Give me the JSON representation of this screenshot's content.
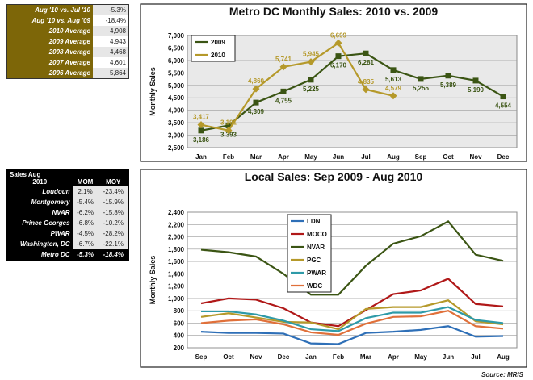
{
  "tables": [
    {
      "rows": [
        [
          "Aug '10 vs. Jul '10",
          "-5.3%"
        ],
        [
          "Aug '10 vs. Aug '09",
          "-18.4%"
        ],
        [
          "2010 Average",
          "4,908"
        ],
        [
          "2009 Average",
          "4,943"
        ],
        [
          "2008 Average",
          "4,468"
        ],
        [
          "2007 Average",
          "4,601"
        ],
        [
          "2006 Average",
          "5,864"
        ]
      ]
    },
    {
      "header": {
        "title_line1": "Sales Aug",
        "title_line2": "2010",
        "columns": [
          "MOM",
          "MOY"
        ]
      },
      "rows": [
        [
          "Loudoun",
          "2.1%",
          "-23.4%"
        ],
        [
          "Montgomery",
          "-5.4%",
          "-15.9%"
        ],
        [
          "NVAR",
          "-6.2%",
          "-15.8%"
        ],
        [
          "Prince Georges",
          "-6.8%",
          "-10.2%"
        ],
        [
          "PWAR",
          "-4.5%",
          "-28.2%"
        ],
        [
          "Washington, DC",
          "-6.7%",
          "-22.1%"
        ],
        [
          "Metro DC",
          "-5.3%",
          "-18.4%"
        ]
      ]
    }
  ],
  "chart_data": [
    {
      "type": "line",
      "title": "Metro DC Monthly Sales: 2010 vs. 2009",
      "y_label": "Monthly Sales",
      "categories": [
        "Jan",
        "Feb",
        "Mar",
        "Apr",
        "May",
        "Jun",
        "Jul",
        "Aug",
        "Sep",
        "Oct",
        "Nov",
        "Dec"
      ],
      "ylim": [
        2500,
        7000
      ],
      "yticks": [
        {
          "value": 2500,
          "label": "2,500"
        },
        {
          "value": 3000,
          "label": "3,000"
        },
        {
          "value": 3500,
          "label": "3,500"
        },
        {
          "value": 4000,
          "label": "4,000"
        },
        {
          "value": 4500,
          "label": "4,500"
        },
        {
          "value": 5000,
          "label": "5,000"
        },
        {
          "value": 5500,
          "label": "5,500"
        },
        {
          "value": 6000,
          "label": "6,000"
        },
        {
          "value": 6500,
          "label": "6,500"
        },
        {
          "value": 7000,
          "label": "7,000"
        }
      ],
      "grid": true,
      "legend": "upper left",
      "series": [
        {
          "name": "2009",
          "color": "#3b5514",
          "marker": "square",
          "values": [
            3186,
            3393,
            4309,
            4755,
            5225,
            6170,
            6281,
            5613,
            5255,
            5389,
            5190,
            4554
          ],
          "value_labels": [
            "3,186",
            "3,393",
            "4,309",
            "4,755",
            "5,225",
            "6,170",
            "6,281",
            "5,613",
            "5,255",
            "5,389",
            "5,190",
            "4,554"
          ]
        },
        {
          "name": "2010",
          "color": "#b5992a",
          "marker": "diamond",
          "values": [
            3417,
            3191,
            4860,
            5741,
            5945,
            6699,
            4835,
            4579,
            null,
            null,
            null,
            null
          ],
          "value_labels": [
            "3,417",
            "3,191",
            "4,860",
            "5,741",
            "5,945",
            "6,699",
            "4,835",
            "4,579",
            null,
            null,
            null,
            null
          ]
        }
      ]
    },
    {
      "type": "line",
      "title": "Local Sales: Sep 2009 - Aug 2010",
      "y_label": "Monthly Sales",
      "categories": [
        "Sep",
        "Oct",
        "Nov",
        "Dec",
        "Jan",
        "Feb",
        "Mar",
        "Apr",
        "May",
        "Jun",
        "Jul",
        "Aug"
      ],
      "ylim": [
        200,
        2400
      ],
      "yticks": [
        200,
        400,
        600,
        800,
        {
          "value": 1000,
          "label": "1,000"
        },
        {
          "value": 1200,
          "label": "1,200"
        },
        {
          "value": 1400,
          "label": "1,400"
        },
        {
          "value": 1600,
          "label": "1,600"
        },
        {
          "value": 1800,
          "label": "1,800"
        },
        {
          "value": 2000,
          "label": "2,000"
        },
        {
          "value": 2200,
          "label": "2,200"
        },
        {
          "value": 2400,
          "label": "2,400"
        }
      ],
      "grid": true,
      "legend": "upper center",
      "series": [
        {
          "name": "LDN",
          "color": "#2e6fb7",
          "values": [
            460,
            440,
            440,
            430,
            270,
            260,
            440,
            460,
            490,
            550,
            380,
            390
          ]
        },
        {
          "name": "MOCO",
          "color": "#b01818",
          "values": [
            920,
            1000,
            980,
            840,
            610,
            550,
            810,
            1070,
            1130,
            1320,
            910,
            870
          ]
        },
        {
          "name": "NVAR",
          "color": "#3b5514",
          "values": [
            1790,
            1750,
            1680,
            1400,
            1060,
            1060,
            1530,
            1890,
            2010,
            2250,
            1710,
            1610
          ]
        },
        {
          "name": "PGC",
          "color": "#b5992a",
          "values": [
            700,
            760,
            690,
            620,
            610,
            500,
            830,
            860,
            860,
            970,
            630,
            580
          ]
        },
        {
          "name": "PWAR",
          "color": "#2e9aa8",
          "values": [
            790,
            790,
            740,
            640,
            500,
            470,
            680,
            770,
            770,
            860,
            650,
            600
          ]
        },
        {
          "name": "WDC",
          "color": "#e0703a",
          "values": [
            600,
            640,
            660,
            580,
            450,
            410,
            590,
            700,
            710,
            800,
            550,
            510
          ]
        }
      ]
    }
  ],
  "source": "Source:  MRIS"
}
